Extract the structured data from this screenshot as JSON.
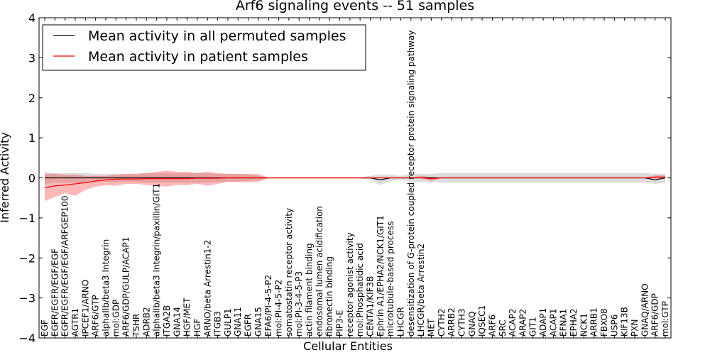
{
  "chart_data": {
    "type": "line",
    "title": "Arf6 signaling events -- 51 samples",
    "xlabel": "Cellular Entities",
    "ylabel": "Inferred Activity",
    "ylim": [
      -4,
      4
    ],
    "yticks": [
      "−4",
      "−3",
      "−2",
      "−1",
      "0",
      "1",
      "2",
      "3",
      "4"
    ],
    "grid": false,
    "legend_position": "top-left",
    "categories": [
      "EGF",
      "EGFR/EGFR/EGF/EGF",
      "EGFR/EGFR/EGF/EGF/ARFGEP100",
      "AGTR1",
      "IPCEF1/ARNO",
      "ARF6/GTP",
      "alphaIIb/beta3 Integrin",
      "mol:GDP",
      "ARF6/GDP/GULP/ACAP1",
      "TSHR",
      "ADRB2",
      "alphaIIb/beta3 Integrin/paxillin/GIT1",
      "ITGA2B",
      "GNA14",
      "HGF/MET",
      "HGF",
      "ARNO/beta Arrestin1-2",
      "ITGB3",
      "GULP1",
      "GNA11",
      "EGFR",
      "GNA15",
      "EFA6/PI-4-5-P2",
      "mol:PI-4-5-P2",
      "somatostatin receptor activity",
      "mol:PI-3-4-5-P3",
      "actin filament binding",
      "endosomal lumen acidification",
      "fibronectin binding",
      "PIP3-E",
      "receptor agonist activity",
      "mol:Phosphatidic acid",
      "CENTA1/KIF3B",
      "Ephrin A1/EPHA2/NCK1/GIT1",
      "microtubule-based process",
      "LHCGR",
      "desensitization of G-protein coupled receptor protein signaling pathway",
      "LHCGR/beta Arrestin2",
      "MET",
      "CYTH2",
      "ARRB2",
      "CYTH3",
      "GNAQ",
      "IQSEC1",
      "ARF6",
      "SRC",
      "ACAP2",
      "ARAP2",
      "GIT1",
      "ADAP1",
      "ACAP1",
      "EFNA1",
      "EPHA2",
      "NCK1",
      "ARRB1",
      "FBXO8",
      "USP6",
      "KIF13B",
      "PXN",
      "GNAQ/ARNO",
      "ARF6/GDP",
      "mol:GTP"
    ],
    "series": [
      {
        "name": "Mean activity in all permuted samples",
        "color": "#000000",
        "values": [
          0.0,
          0.0,
          0.0,
          0.0,
          0.0,
          0.0,
          0.0,
          0.0,
          0.0,
          0.0,
          0.0,
          0.0,
          0.0,
          0.0,
          0.0,
          0.0,
          0.0,
          0.0,
          0.0,
          0.0,
          0.0,
          0.0,
          0.0,
          0.0,
          0.0,
          0.0,
          0.0,
          0.0,
          0.0,
          0.0,
          0.0,
          0.0,
          0.0,
          -0.05,
          0.0,
          0.0,
          0.0,
          0.0,
          0.0,
          0.0,
          0.0,
          0.0,
          0.0,
          0.0,
          0.0,
          0.0,
          0.0,
          0.0,
          0.0,
          0.0,
          0.0,
          0.0,
          0.0,
          0.0,
          0.0,
          0.0,
          0.0,
          0.0,
          0.0,
          0.0,
          -0.05,
          0.0
        ],
        "lower": [
          -0.15,
          -0.12,
          -0.12,
          -0.12,
          -0.12,
          -0.1,
          -0.1,
          -0.1,
          -0.1,
          -0.1,
          -0.12,
          -0.12,
          -0.12,
          -0.12,
          -0.12,
          -0.12,
          -0.12,
          -0.1,
          -0.1,
          -0.1,
          -0.08,
          -0.05,
          -0.01,
          -0.01,
          -0.01,
          -0.01,
          -0.01,
          -0.01,
          -0.01,
          -0.01,
          -0.01,
          -0.01,
          -0.05,
          -0.18,
          -0.08,
          -0.05,
          -0.1,
          -0.1,
          -0.1,
          -0.12,
          -0.12,
          -0.12,
          -0.12,
          -0.12,
          -0.12,
          -0.12,
          -0.12,
          -0.12,
          -0.12,
          -0.12,
          -0.12,
          -0.12,
          -0.12,
          -0.12,
          -0.12,
          -0.12,
          -0.12,
          -0.12,
          -0.12,
          -0.12,
          -0.15,
          -0.12
        ],
        "upper": [
          0.15,
          0.12,
          0.12,
          0.12,
          0.12,
          0.1,
          0.1,
          0.1,
          0.1,
          0.1,
          0.12,
          0.12,
          0.12,
          0.12,
          0.12,
          0.12,
          0.12,
          0.1,
          0.1,
          0.1,
          0.08,
          0.05,
          0.01,
          0.01,
          0.01,
          0.01,
          0.01,
          0.01,
          0.01,
          0.01,
          0.01,
          0.01,
          0.05,
          0.08,
          0.08,
          0.05,
          0.1,
          0.1,
          0.1,
          0.12,
          0.12,
          0.12,
          0.12,
          0.12,
          0.12,
          0.12,
          0.12,
          0.12,
          0.12,
          0.12,
          0.12,
          0.12,
          0.12,
          0.12,
          0.12,
          0.12,
          0.12,
          0.12,
          0.12,
          0.12,
          0.1,
          0.1
        ]
      },
      {
        "name": "Mean activity in patient samples",
        "color": "#ff0000",
        "values": [
          -0.25,
          -0.2,
          -0.18,
          -0.15,
          -0.12,
          -0.08,
          -0.05,
          -0.03,
          -0.03,
          -0.03,
          -0.02,
          -0.02,
          -0.02,
          -0.02,
          -0.02,
          -0.01,
          -0.01,
          -0.01,
          0.0,
          0.0,
          0.0,
          0.0,
          0.0,
          0.0,
          0.0,
          0.0,
          0.0,
          0.0,
          0.0,
          0.0,
          0.0,
          0.0,
          0.0,
          0.0,
          0.0,
          0.0,
          0.0,
          0.0,
          -0.02,
          0.0,
          0.0,
          0.0,
          0.0,
          0.0,
          0.0,
          0.0,
          0.0,
          0.0,
          0.0,
          0.0,
          0.0,
          0.0,
          0.0,
          0.0,
          0.0,
          0.0,
          0.0,
          0.0,
          0.0,
          0.0,
          0.02,
          0.02
        ],
        "lower": [
          -0.58,
          -0.48,
          -0.38,
          -0.45,
          -0.3,
          -0.22,
          -0.18,
          -0.2,
          -0.15,
          -0.15,
          -0.18,
          -0.2,
          -0.22,
          -0.18,
          -0.18,
          -0.15,
          -0.2,
          -0.15,
          -0.1,
          -0.1,
          -0.1,
          -0.1,
          -0.01,
          -0.01,
          -0.01,
          -0.01,
          -0.01,
          -0.01,
          -0.01,
          -0.01,
          -0.01,
          -0.01,
          -0.01,
          -0.01,
          -0.01,
          -0.01,
          -0.01,
          -0.01,
          -0.08,
          -0.01,
          -0.01,
          -0.01,
          -0.01,
          -0.01,
          -0.01,
          -0.01,
          -0.01,
          -0.01,
          -0.01,
          -0.01,
          -0.01,
          -0.01,
          -0.01,
          -0.01,
          -0.01,
          -0.01,
          -0.01,
          -0.01,
          -0.01,
          -0.01,
          -0.02,
          -0.02
        ],
        "upper": [
          0.1,
          0.1,
          0.08,
          0.08,
          0.05,
          0.05,
          0.05,
          0.08,
          0.1,
          0.1,
          0.12,
          0.15,
          0.18,
          0.15,
          0.15,
          0.12,
          0.15,
          0.12,
          0.1,
          0.1,
          0.1,
          0.1,
          0.01,
          0.01,
          0.01,
          0.01,
          0.01,
          0.01,
          0.01,
          0.01,
          0.01,
          0.01,
          0.01,
          0.01,
          0.01,
          0.01,
          0.01,
          0.05,
          0.02,
          0.01,
          0.01,
          0.01,
          0.01,
          0.01,
          0.01,
          0.01,
          0.01,
          0.01,
          0.01,
          0.01,
          0.01,
          0.01,
          0.01,
          0.01,
          0.01,
          0.01,
          0.01,
          0.01,
          0.01,
          0.01,
          0.06,
          0.06
        ]
      }
    ]
  }
}
